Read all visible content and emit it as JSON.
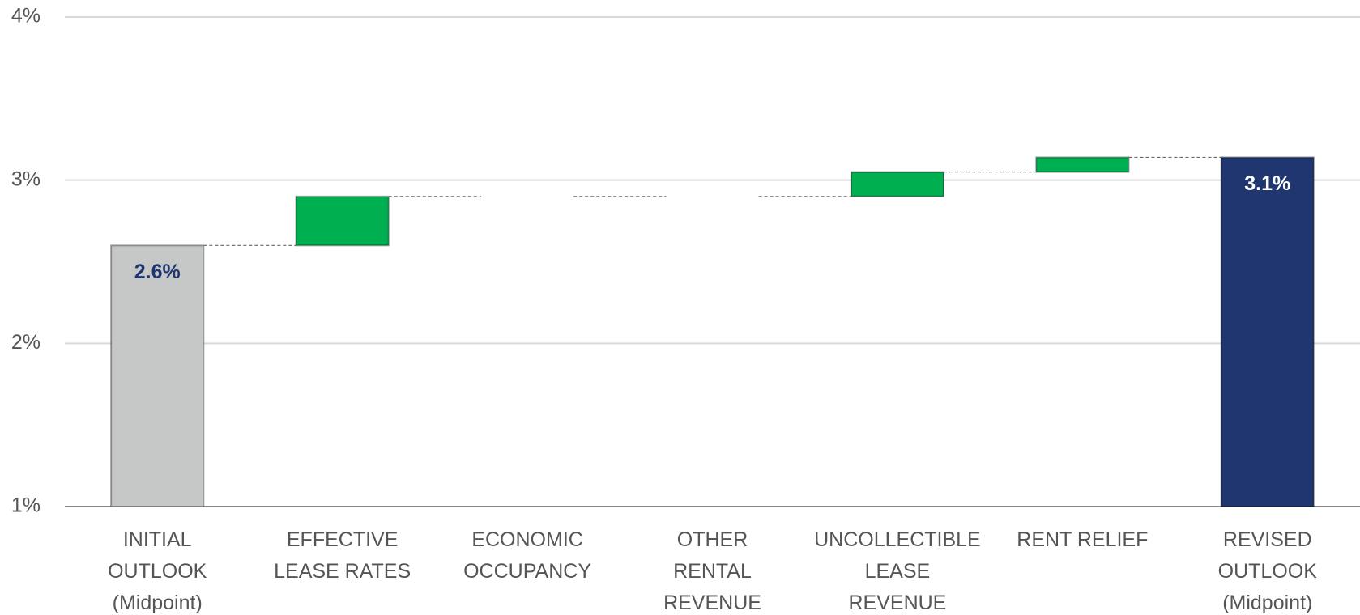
{
  "chart_data": {
    "type": "waterfall",
    "categories": [
      "INITIAL\nOUTLOOK\n(Midpoint)",
      "EFFECTIVE\nLEASE RATES",
      "ECONOMIC\nOCCUPANCY",
      "OTHER\nRENTAL\nREVENUE",
      "UNCOLLECTIBLE\nLEASE\nREVENUE",
      "RENT RELIEF",
      "REVISED\nOUTLOOK\n(Midpoint)"
    ],
    "values": [
      2.6,
      0.3,
      0,
      0,
      0.15,
      0.09,
      3.14
    ],
    "measure": [
      "absolute",
      "relative",
      "relative",
      "relative",
      "relative",
      "relative",
      "total"
    ],
    "value_labels": [
      "2.6%",
      null,
      null,
      null,
      null,
      null,
      "3.1%"
    ],
    "colors": [
      "#c6c7c7",
      "#00b050",
      "#00b050",
      "#00b050",
      "#00b050",
      "#00b050",
      "#1f3670"
    ],
    "label_colors": [
      "#1f3670",
      null,
      null,
      null,
      null,
      null,
      "#ffffff"
    ],
    "ylim": [
      1,
      4
    ],
    "yticks": [
      {
        "value": 1,
        "label": "1%"
      },
      {
        "value": 2,
        "label": "2%"
      },
      {
        "value": 3,
        "label": "3%"
      },
      {
        "value": 4,
        "label": "4%"
      }
    ],
    "grid": true
  }
}
